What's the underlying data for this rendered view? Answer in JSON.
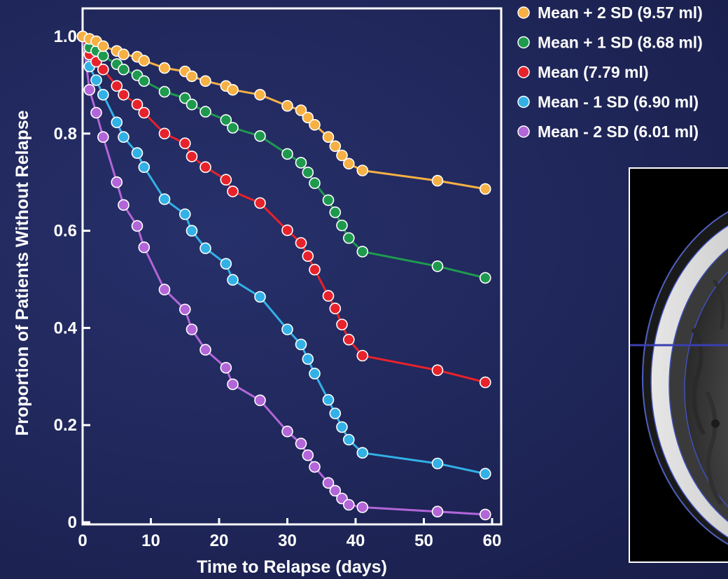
{
  "chart_data": {
    "type": "line",
    "title": "",
    "xlabel": "Time to Relapse (days)",
    "ylabel": "Proportion of Patients Without Relapse",
    "xlim": [
      0,
      60
    ],
    "ylim": [
      0,
      1.0
    ],
    "x_ticks": [
      0,
      10,
      20,
      30,
      40,
      50,
      60
    ],
    "x_tick_labels": [
      "0",
      "10",
      "20",
      "30",
      "40",
      "50",
      "60"
    ],
    "y_ticks": [
      0,
      0.2,
      0.4,
      0.6,
      0.8,
      1.0
    ],
    "y_tick_labels": [
      "0",
      "0.2",
      "0.4",
      "0.6",
      "0.8",
      "1.0"
    ],
    "grid": false,
    "legend_position": "outside-top-right",
    "x": [
      0,
      1,
      2,
      3,
      5,
      6,
      8,
      9,
      12,
      15,
      16,
      18,
      21,
      22,
      26,
      30,
      32,
      33,
      34,
      36,
      37,
      38,
      39,
      41,
      52,
      59
    ],
    "series": [
      {
        "name": "Mean + 2 SD (9.57 ml)",
        "color": "#f7b044",
        "values": [
          1.0,
          0.995,
          0.99,
          0.98,
          0.97,
          0.963,
          0.958,
          0.95,
          0.935,
          0.928,
          0.918,
          0.908,
          0.898,
          0.89,
          0.88,
          0.857,
          0.848,
          0.833,
          0.818,
          0.793,
          0.774,
          0.755,
          0.738,
          0.724,
          0.703,
          0.686
        ]
      },
      {
        "name": "Mean + 1 SD (8.68 ml)",
        "color": "#1e9a4f",
        "values": [
          1.0,
          0.977,
          0.97,
          0.96,
          0.943,
          0.932,
          0.92,
          0.908,
          0.886,
          0.873,
          0.86,
          0.845,
          0.828,
          0.812,
          0.795,
          0.758,
          0.74,
          0.72,
          0.698,
          0.663,
          0.638,
          0.611,
          0.585,
          0.557,
          0.527,
          0.503
        ]
      },
      {
        "name": "Mean (7.79 ml)",
        "color": "#e8222b",
        "values": [
          1.0,
          0.963,
          0.948,
          0.932,
          0.898,
          0.88,
          0.86,
          0.843,
          0.8,
          0.78,
          0.753,
          0.731,
          0.705,
          0.681,
          0.657,
          0.601,
          0.575,
          0.548,
          0.52,
          0.466,
          0.44,
          0.407,
          0.376,
          0.343,
          0.313,
          0.288
        ]
      },
      {
        "name": "Mean - 1 SD (6.90 ml)",
        "color": "#32b1e6",
        "values": [
          1.0,
          0.938,
          0.91,
          0.88,
          0.823,
          0.793,
          0.76,
          0.731,
          0.665,
          0.634,
          0.6,
          0.564,
          0.532,
          0.499,
          0.464,
          0.397,
          0.366,
          0.336,
          0.306,
          0.252,
          0.224,
          0.196,
          0.17,
          0.143,
          0.121,
          0.1
        ]
      },
      {
        "name": "Mean - 2 SD (6.01 ml)",
        "color": "#b266d8",
        "values": [
          1.0,
          0.89,
          0.843,
          0.793,
          0.7,
          0.653,
          0.61,
          0.566,
          0.479,
          0.438,
          0.397,
          0.355,
          0.318,
          0.284,
          0.251,
          0.187,
          0.162,
          0.138,
          0.114,
          0.081,
          0.065,
          0.049,
          0.036,
          0.031,
          0.022,
          0.016
        ]
      }
    ]
  },
  "colors": {
    "background": "#1f2659",
    "axes_frame": "#ffffff",
    "marker_outline": "#ffffff",
    "scan_line": "#3a3fb0"
  },
  "inset_image": {
    "description_icon": "brain-scan-image"
  }
}
